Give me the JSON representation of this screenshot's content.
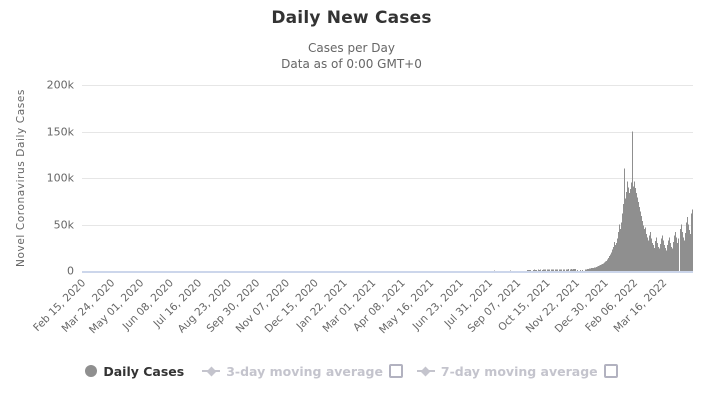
{
  "header": {
    "title": "Daily New Cases",
    "subtitle_line1": "Cases per Day",
    "subtitle_line2": "Data as of 0:00 GMT+0"
  },
  "chart_data": {
    "type": "bar",
    "title": "Daily New Cases",
    "subtitle": [
      "Cases per Day",
      "Data as of 0:00 GMT+0"
    ],
    "xlabel": "",
    "ylabel": "Novel Coronavirus Daily Cases",
    "ylim": [
      0,
      200000
    ],
    "y_tick_values": [
      0,
      50000,
      100000,
      150000,
      200000
    ],
    "y_tick_labels": [
      "0",
      "50k",
      "100k",
      "150k",
      "200k"
    ],
    "grid": "horizontal",
    "legend_position": "bottom",
    "x_axis": {
      "start_label": "Feb 15, 2020",
      "tick_interval_days": 38,
      "total_days_span": 800,
      "tick_labels": [
        "Feb 15, 2020",
        "Mar 24, 2020",
        "May 01, 2020",
        "Jun 08, 2020",
        "Jul 16, 2020",
        "Aug 23, 2020",
        "Sep 30, 2020",
        "Nov 07, 2020",
        "Dec 15, 2020",
        "Jan 22, 2021",
        "Mar 01, 2021",
        "Apr 08, 2021",
        "May 16, 2021",
        "Jun 23, 2021",
        "Jul 31, 2021",
        "Sep 07, 2021",
        "Oct 15, 2021",
        "Nov 22, 2021",
        "Dec 30, 2021",
        "Feb 06, 2022",
        "Mar 16, 2022"
      ]
    },
    "series": [
      {
        "name": "Daily Cases",
        "type": "column",
        "visible": true,
        "color": "#8f8f8f",
        "unit": "cases, values in thousands; day index counted from Feb 15, 2020",
        "points_day_value_k": [
          [
            30,
            0.1
          ],
          [
            120,
            0.15
          ],
          [
            250,
            0.2
          ],
          [
            380,
            0.3
          ],
          [
            480,
            0.4
          ],
          [
            540,
            0.5
          ],
          [
            560,
            0.6
          ],
          [
            583,
            1.2
          ],
          [
            584,
            1.2
          ],
          [
            585,
            1.3
          ],
          [
            587,
            1.2
          ],
          [
            590,
            1.3
          ],
          [
            592,
            1.4
          ],
          [
            593,
            1.3
          ],
          [
            594,
            1.2
          ],
          [
            597,
            1.4
          ],
          [
            598,
            1.3
          ],
          [
            600,
            1.5
          ],
          [
            602,
            1.3
          ],
          [
            604,
            1.4
          ],
          [
            605,
            1.5
          ],
          [
            606,
            1.4
          ],
          [
            609,
            1.5
          ],
          [
            610,
            1.4
          ],
          [
            611,
            1.6
          ],
          [
            614,
            1.5
          ],
          [
            615,
            1.6
          ],
          [
            617,
            1.5
          ],
          [
            619,
            1.6
          ],
          [
            620,
            1.5
          ],
          [
            622,
            1.7
          ],
          [
            625,
            1.6
          ],
          [
            626,
            1.7
          ],
          [
            627,
            1.6
          ],
          [
            630,
            1.7
          ],
          [
            631,
            1.8
          ],
          [
            634,
            1.7
          ],
          [
            635,
            1.8
          ],
          [
            636,
            1.9
          ],
          [
            639,
            1.8
          ],
          [
            640,
            1.9
          ],
          [
            642,
            1.8
          ],
          [
            643,
            2.0
          ],
          [
            644,
            1.9
          ],
          [
            645,
            2.0
          ],
          [
            648,
            1.0
          ],
          [
            652,
            1.2
          ],
          [
            655,
            1.0
          ],
          [
            659,
            1.5
          ],
          [
            660,
            1.8
          ],
          [
            661,
            2.0
          ],
          [
            662,
            2.2
          ],
          [
            664,
            2.5
          ],
          [
            665,
            2.8
          ],
          [
            666,
            3.0
          ],
          [
            668,
            3.2
          ],
          [
            669,
            3.5
          ],
          [
            670,
            3.8
          ],
          [
            672,
            4.0
          ],
          [
            673,
            4.5
          ],
          [
            674,
            5.0
          ],
          [
            676,
            5.5
          ],
          [
            677,
            6.0
          ],
          [
            678,
            6.5
          ],
          [
            679,
            7.0
          ],
          [
            681,
            7.5
          ],
          [
            682,
            8.0
          ],
          [
            683,
            9.0
          ],
          [
            685,
            10
          ],
          [
            686,
            11
          ],
          [
            687,
            12.5
          ],
          [
            689,
            14
          ],
          [
            690,
            16
          ],
          [
            691,
            18
          ],
          [
            693,
            20
          ],
          [
            694,
            23
          ],
          [
            695,
            26
          ],
          [
            696,
            31
          ],
          [
            698,
            28
          ],
          [
            699,
            30
          ],
          [
            700,
            35
          ],
          [
            702,
            42
          ],
          [
            703,
            50
          ],
          [
            704,
            45
          ],
          [
            706,
            52
          ],
          [
            707,
            62
          ],
          [
            708,
            72
          ],
          [
            710,
            110
          ],
          [
            711,
            78
          ],
          [
            712,
            85
          ],
          [
            713,
            96
          ],
          [
            715,
            90
          ],
          [
            716,
            84
          ],
          [
            717,
            88
          ],
          [
            719,
            95
          ],
          [
            720,
            150
          ],
          [
            721,
            91
          ],
          [
            723,
            96
          ],
          [
            724,
            89
          ],
          [
            725,
            84
          ],
          [
            727,
            79
          ],
          [
            728,
            74
          ],
          [
            729,
            69
          ],
          [
            730,
            64
          ],
          [
            732,
            59
          ],
          [
            733,
            54
          ],
          [
            734,
            49
          ],
          [
            736,
            45
          ],
          [
            737,
            47
          ],
          [
            738,
            40
          ],
          [
            740,
            36
          ],
          [
            741,
            33
          ],
          [
            742,
            38
          ],
          [
            744,
            42
          ],
          [
            745,
            35
          ],
          [
            746,
            30
          ],
          [
            747,
            28
          ],
          [
            749,
            25
          ],
          [
            750,
            32
          ],
          [
            751,
            36
          ],
          [
            753,
            30
          ],
          [
            754,
            26
          ],
          [
            755,
            24
          ],
          [
            757,
            29
          ],
          [
            758,
            35
          ],
          [
            759,
            38
          ],
          [
            761,
            33
          ],
          [
            762,
            28
          ],
          [
            763,
            25
          ],
          [
            764,
            22
          ],
          [
            766,
            28
          ],
          [
            767,
            33
          ],
          [
            768,
            36
          ],
          [
            770,
            30
          ],
          [
            771,
            26
          ],
          [
            772,
            24
          ],
          [
            774,
            31
          ],
          [
            775,
            38
          ],
          [
            776,
            42
          ],
          [
            778,
            36
          ],
          [
            779,
            30
          ],
          [
            780,
            28
          ],
          [
            781,
            35
          ],
          [
            783,
            45
          ],
          [
            784,
            50
          ],
          [
            785,
            42
          ],
          [
            787,
            36
          ],
          [
            788,
            33
          ],
          [
            789,
            41
          ],
          [
            791,
            52
          ],
          [
            792,
            58
          ],
          [
            793,
            50
          ],
          [
            795,
            44
          ],
          [
            796,
            40
          ],
          [
            797,
            50
          ],
          [
            798,
            62
          ],
          [
            800,
            66
          ]
        ]
      },
      {
        "name": "3-day moving average",
        "type": "line",
        "visible": false
      },
      {
        "name": "7-day moving average",
        "type": "line",
        "visible": false
      }
    ]
  },
  "legend": {
    "items": [
      {
        "label": "Daily Cases",
        "marker": "circle",
        "active": true,
        "checkbox": false,
        "checked": false
      },
      {
        "label": "3-day moving average",
        "marker": "line-diamond",
        "active": false,
        "checkbox": true,
        "checked": false
      },
      {
        "label": "7-day moving average",
        "marker": "line-diamond",
        "active": false,
        "checkbox": true,
        "checked": false
      }
    ]
  },
  "colors": {
    "bar": "#8f8f8f",
    "gridline": "#e6e6e6",
    "axis_line": "#ccd6eb",
    "axis_text": "#666666",
    "title_text": "#333333",
    "legend_active_text": "#333333",
    "legend_inactive": "#c4c4cd"
  }
}
